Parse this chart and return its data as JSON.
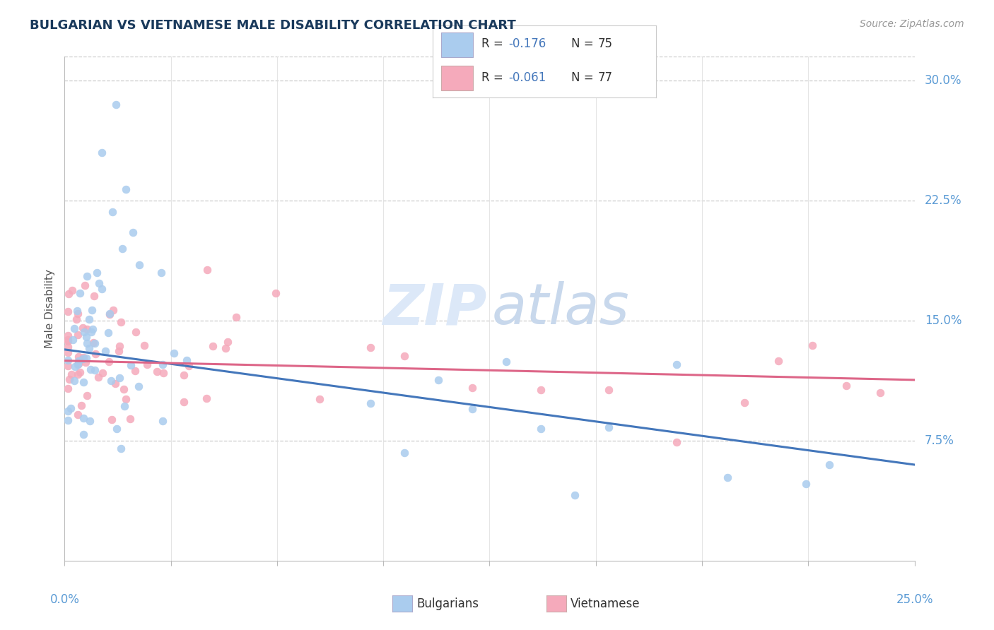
{
  "title": "BULGARIAN VS VIETNAMESE MALE DISABILITY CORRELATION CHART",
  "source": "Source: ZipAtlas.com",
  "ylabel": "Male Disability",
  "xlim": [
    0.0,
    0.25
  ],
  "ylim": [
    0.0,
    0.315
  ],
  "ytick_values": [
    0.075,
    0.15,
    0.225,
    0.3
  ],
  "ytick_labels": [
    "7.5%",
    "15.0%",
    "22.5%",
    "30.0%"
  ],
  "xtick_values": [
    0.0,
    0.03125,
    0.0625,
    0.09375,
    0.125,
    0.15625,
    0.1875,
    0.21875,
    0.25
  ],
  "bulgarian_color": "#aaccee",
  "vietnamese_color": "#f5aabb",
  "bulgarian_line_color": "#4477bb",
  "vietnamese_line_color": "#dd6688",
  "legend_text_color": "#333333",
  "legend_value_color": "#4477bb",
  "legend_N_color": "#333333",
  "legend_R_bulgarian": "-0.176",
  "legend_N_bulgarian": "75",
  "legend_R_vietnamese": "-0.061",
  "legend_N_vietnamese": "77",
  "bul_line_x": [
    0.0,
    0.25
  ],
  "bul_line_y": [
    0.132,
    0.06
  ],
  "vie_line_x": [
    0.0,
    0.25
  ],
  "vie_line_y": [
    0.125,
    0.113
  ],
  "bg_color": "#ffffff",
  "grid_color": "#cccccc",
  "title_color": "#1a3a5c",
  "axis_label_color": "#5b9bd5",
  "ylabel_color": "#555555",
  "watermark_zip_color": "#dce8f8",
  "watermark_atlas_color": "#c8d8ec"
}
